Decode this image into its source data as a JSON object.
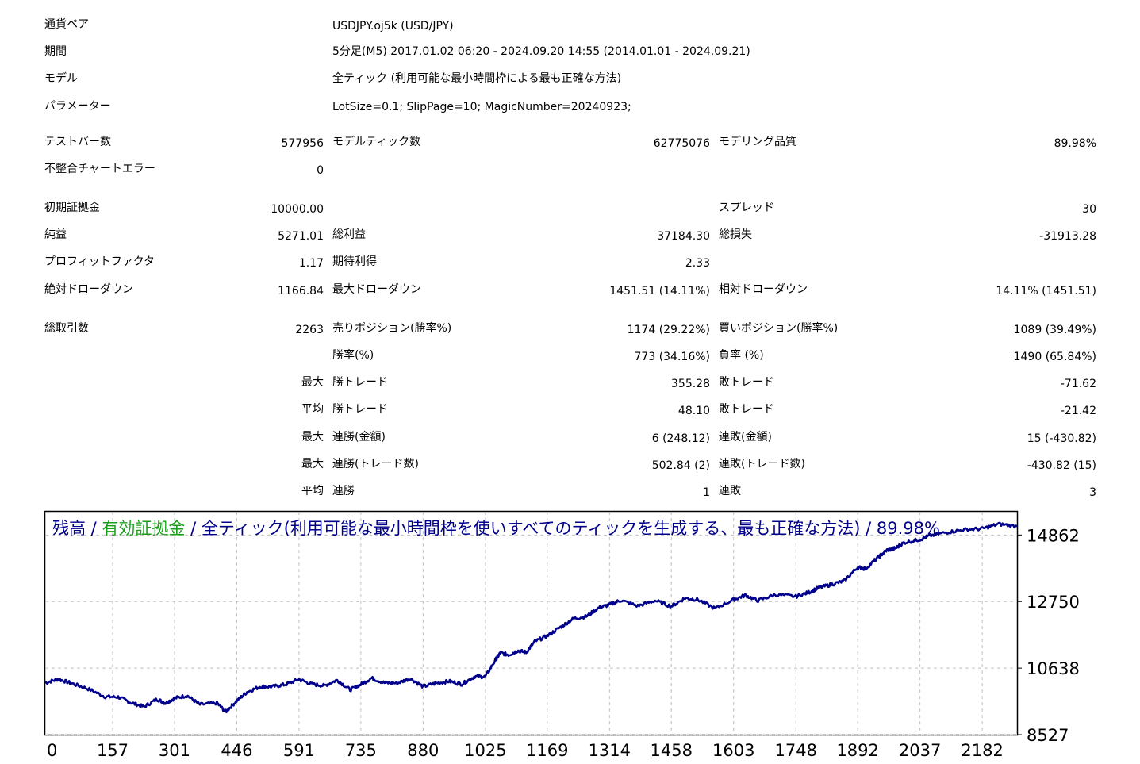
{
  "report": {
    "currency_pair_label": "通貨ペア",
    "currency_pair_value": "USDJPY.oj5k (USD/JPY)",
    "period_label": "期間",
    "period_value": "5分足(M5) 2017.01.02 06:20 - 2024.09.20 14:55 (2014.01.01 - 2024.09.21)",
    "model_label": "モデル",
    "model_value": "全ティック (利用可能な最小時間枠による最も正確な方法)",
    "params_label": "パラメーター",
    "params_value": "LotSize=0.1; SlipPage=10; MagicNumber=20240923;",
    "bars_label": "テストバー数",
    "bars_value": "577956",
    "ticks_label": "モデルティック数",
    "ticks_value": "62775076",
    "quality_label": "モデリング品質",
    "quality_value": "89.98%",
    "mismatch_label": "不整合チャートエラー",
    "mismatch_value": "0",
    "deposit_label": "初期証拠金",
    "deposit_value": "10000.00",
    "spread_label": "スプレッド",
    "spread_value": "30",
    "net_label": "純益",
    "net_value": "5271.01",
    "gross_profit_label": "総利益",
    "gross_profit_value": "37184.30",
    "gross_loss_label": "総損失",
    "gross_loss_value": "-31913.28",
    "pf_label": "プロフィットファクタ",
    "pf_value": "1.17",
    "expected_label": "期待利得",
    "expected_value": "2.33",
    "abs_dd_label": "絶対ドローダウン",
    "abs_dd_value": "1166.84",
    "max_dd_label": "最大ドローダウン",
    "max_dd_value": "1451.51 (14.11%)",
    "rel_dd_label": "相対ドローダウン",
    "rel_dd_value": "14.11% (1451.51)",
    "trades_label": "総取引数",
    "trades_value": "2263",
    "short_label": "売りポジション(勝率%)",
    "short_value": "1174 (29.22%)",
    "long_label": "買いポジション(勝率%)",
    "long_value": "1089 (39.49%)",
    "winrate_label": "勝率(%)",
    "winrate_value": "773 (34.16%)",
    "lossrate_label": "負率 (%)",
    "lossrate_value": "1490 (65.84%)",
    "max_label": "最大",
    "avg_label": "平均",
    "largest_win_label": "勝トレード",
    "largest_win_value": "355.28",
    "largest_loss_label": "敗トレード",
    "largest_loss_value": "-71.62",
    "avg_win_label": "勝トレード",
    "avg_win_value": "48.10",
    "avg_loss_label": "敗トレード",
    "avg_loss_value": "-21.42",
    "max_cons_wins_label": "連勝(金額)",
    "max_cons_wins_value": "6 (248.12)",
    "max_cons_losses_label": "連敗(金額)",
    "max_cons_losses_value": "15 (-430.82)",
    "max_cons_profit_label": "連勝(トレード数)",
    "max_cons_profit_value": "502.84 (2)",
    "max_cons_loss_label": "連敗(トレード数)",
    "max_cons_loss_value": "-430.82 (15)",
    "avg_cons_wins_label": "連勝",
    "avg_cons_wins_value": "1",
    "avg_cons_losses_label": "連敗",
    "avg_cons_losses_value": "3"
  },
  "chart_data": {
    "type": "line",
    "legend": {
      "balance": "残高",
      "sep1": " / ",
      "equity": "有効証拠金",
      "rest": " / 全ティック(利用可能な最小時間枠を使いすべてのティックを生成する、最も正確な方法) / 89.98%"
    },
    "colors": {
      "balance": "#00008b",
      "equity": "#1a9e1a",
      "grid": "#c0c0c0"
    },
    "xlim": [
      0,
      2263
    ],
    "ylim": [
      8527,
      15600
    ],
    "x_ticks": [
      0,
      157,
      301,
      446,
      591,
      735,
      880,
      1025,
      1169,
      1314,
      1458,
      1603,
      1748,
      1892,
      2037,
      2182
    ],
    "y_ticks": [
      8527,
      10638,
      12750,
      14862
    ],
    "series": [
      {
        "values_x": [
          0,
          30,
          60,
          100,
          140,
          170,
          200,
          230,
          260,
          280,
          301,
          330,
          360,
          400,
          420,
          446,
          470,
          500,
          530,
          560,
          591,
          620,
          650,
          680,
          710,
          735,
          760,
          790,
          820,
          850,
          880,
          910,
          940,
          970,
          1000,
          1025,
          1050,
          1060,
          1080,
          1100,
          1120,
          1140,
          1169,
          1200,
          1230,
          1260,
          1290,
          1314,
          1340,
          1380,
          1420,
          1458,
          1490,
          1520,
          1560,
          1603,
          1630,
          1660,
          1700,
          1748,
          1780,
          1800,
          1830,
          1860,
          1892,
          1910,
          1940,
          1960,
          1980,
          2000,
          2037,
          2060,
          2100,
          2140,
          2182,
          2220,
          2263
        ],
        "values_y": [
          10170,
          10290,
          10160,
          9980,
          9730,
          9720,
          9540,
          9410,
          9650,
          9530,
          9680,
          9770,
          9480,
          9530,
          9250,
          9600,
          9880,
          10050,
          10050,
          10120,
          10280,
          10130,
          10080,
          10260,
          9950,
          10120,
          10320,
          10170,
          10160,
          10310,
          10050,
          10160,
          10220,
          10130,
          10370,
          10370,
          10930,
          11120,
          11060,
          11190,
          11140,
          11480,
          11660,
          11940,
          12210,
          12280,
          12560,
          12650,
          12790,
          12610,
          12780,
          12600,
          12860,
          12810,
          12530,
          12810,
          12950,
          12780,
          12970,
          12910,
          13050,
          13180,
          13290,
          13400,
          13840,
          13790,
          14160,
          14380,
          14440,
          14620,
          14720,
          14840,
          14950,
          15030,
          15060,
          15210,
          15140
        ]
      }
    ]
  }
}
